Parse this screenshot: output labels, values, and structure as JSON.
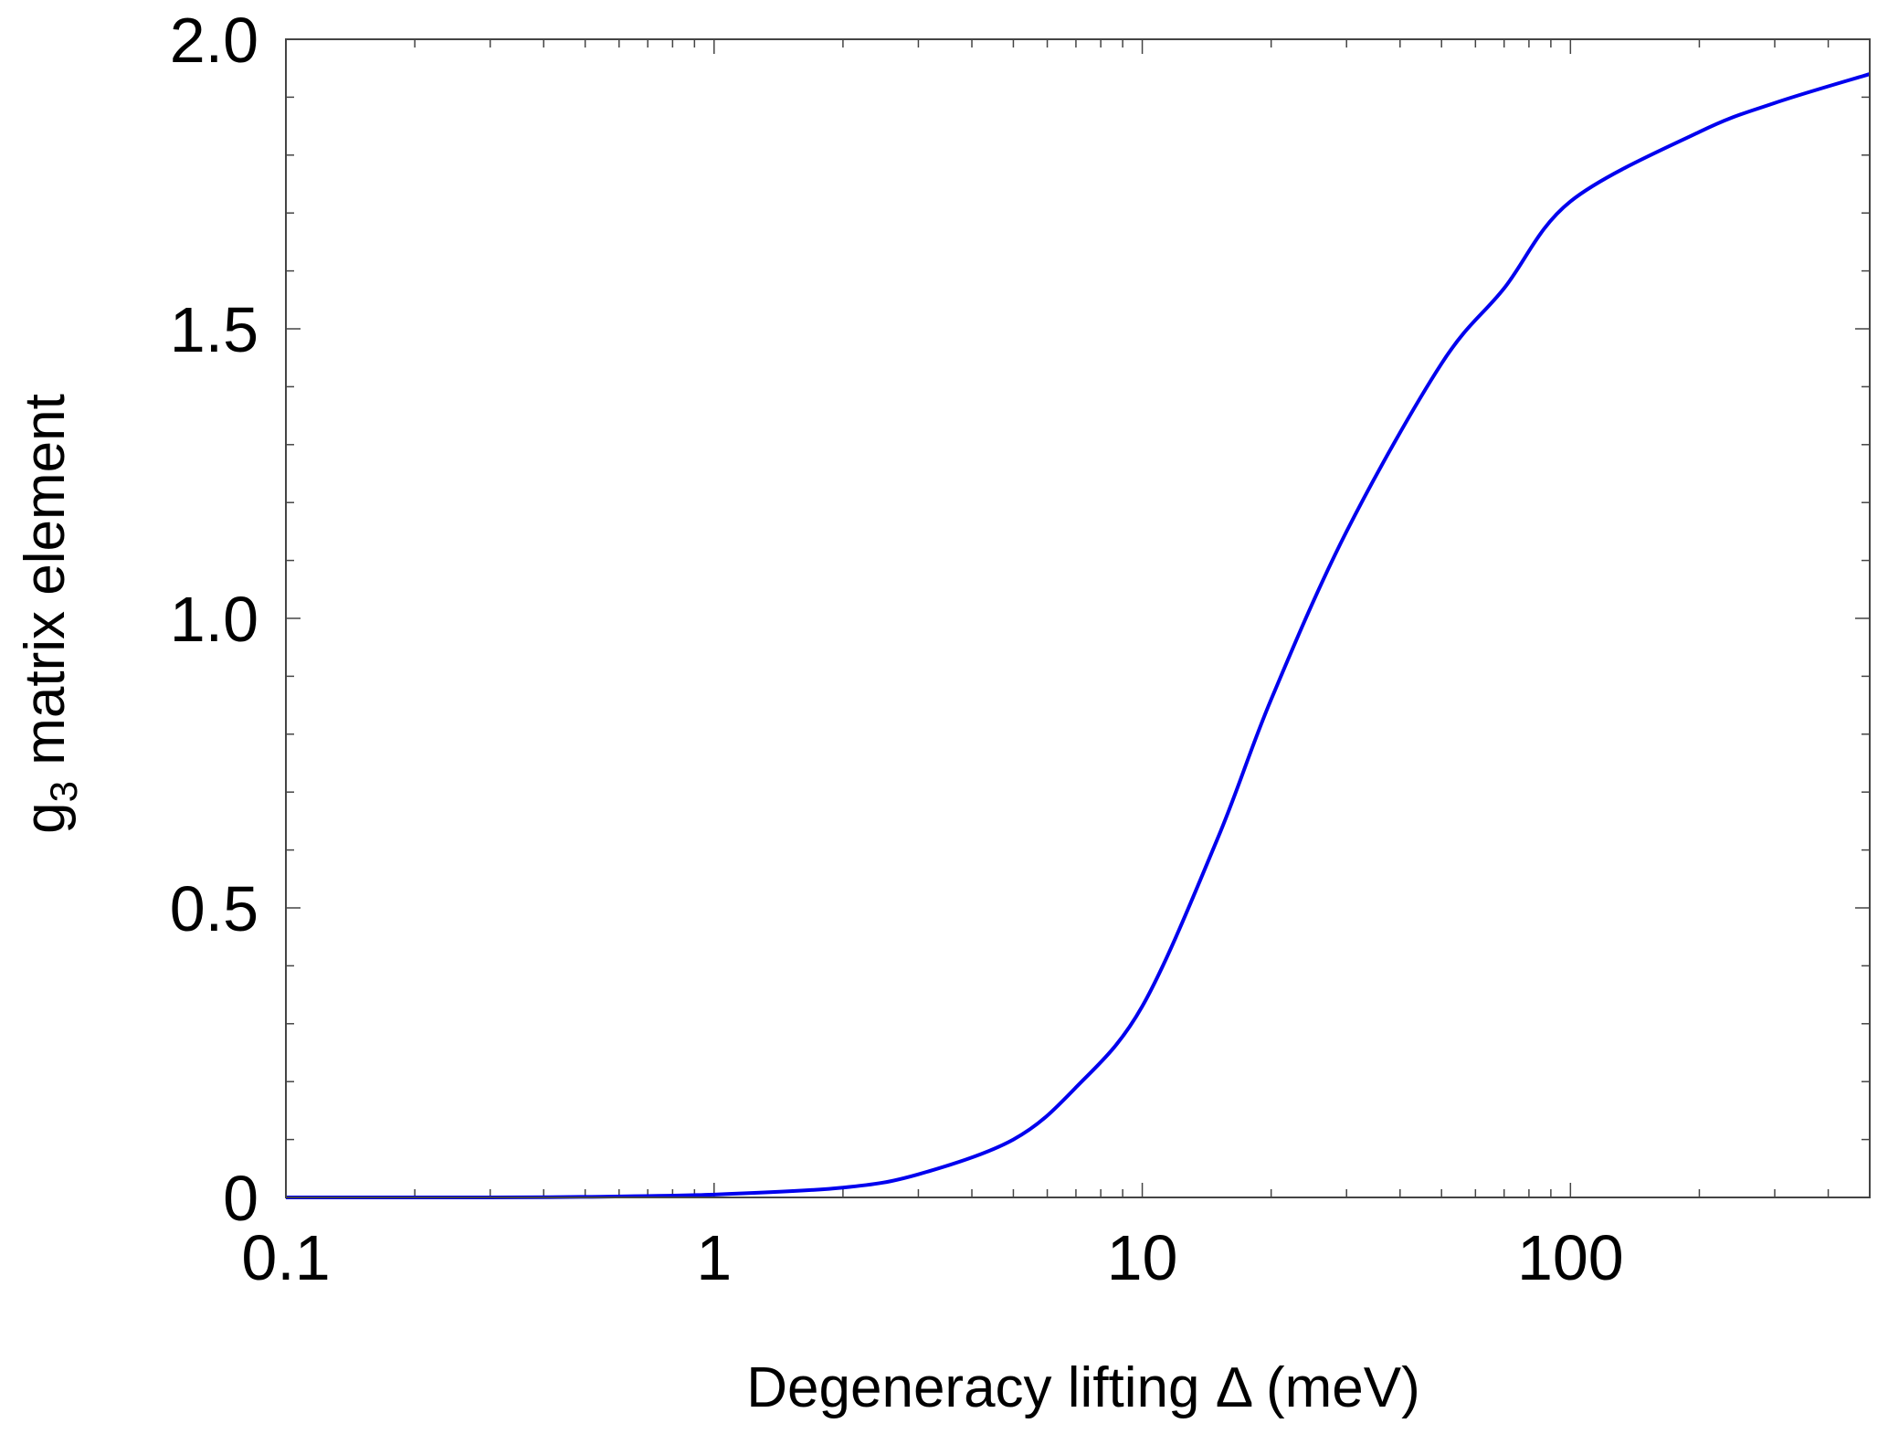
{
  "chart_data": {
    "type": "line",
    "title": "",
    "xlabel": "Degeneracy lifting Δ (meV)",
    "ylabel_main": "g",
    "ylabel_sub": "3",
    "ylabel_rest": " matrix element",
    "xscale": "log",
    "xlim": [
      0.1,
      500
    ],
    "ylim": [
      0,
      2.0
    ],
    "grid": false,
    "xticks": [
      {
        "value": 0.1,
        "label": "0.1"
      },
      {
        "value": 1,
        "label": "1"
      },
      {
        "value": 10,
        "label": "10"
      },
      {
        "value": 100,
        "label": "100"
      }
    ],
    "yticks": [
      {
        "value": 0,
        "label": "0"
      },
      {
        "value": 0.5,
        "label": "0.5"
      },
      {
        "value": 1.0,
        "label": "1.0"
      },
      {
        "value": 1.5,
        "label": "1.5"
      },
      {
        "value": 2.0,
        "label": "2.0"
      }
    ],
    "series": [
      {
        "name": "g3",
        "color": "#0000ee",
        "x": [
          0.1,
          0.3,
          0.5,
          1,
          2,
          3,
          5,
          7,
          10,
          15,
          20,
          30,
          50,
          70,
          100,
          200,
          300,
          500
        ],
        "y": [
          0,
          0,
          0.001,
          0.005,
          0.017,
          0.04,
          0.1,
          0.19,
          0.33,
          0.62,
          0.86,
          1.15,
          1.44,
          1.57,
          1.72,
          1.84,
          1.89,
          1.94
        ]
      }
    ]
  }
}
